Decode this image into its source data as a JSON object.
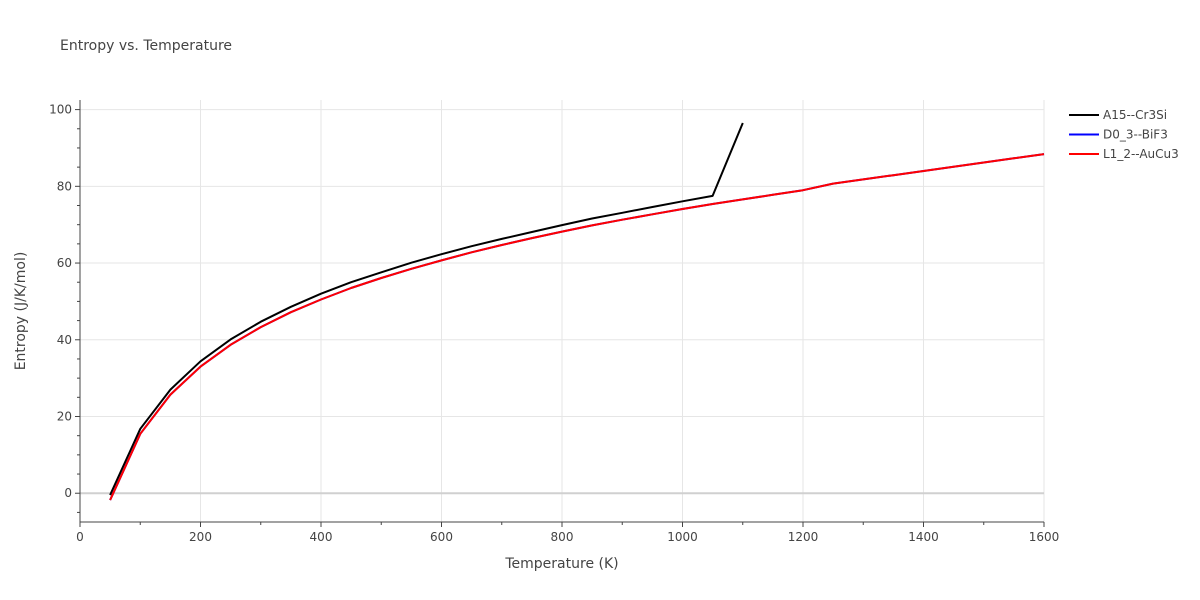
{
  "chart_data": {
    "type": "line",
    "title": "Entropy vs. Temperature",
    "xlabel": "Temperature (K)",
    "ylabel": "Entropy (J/K/mol)",
    "xlim": [
      0,
      1600
    ],
    "ylim": [
      -7.5,
      102.5
    ],
    "xticks": [
      0,
      200,
      400,
      600,
      800,
      1000,
      1200,
      1400,
      1600
    ],
    "yticks": [
      0,
      20,
      40,
      60,
      80,
      100
    ],
    "grid": true,
    "legend": "right",
    "series": [
      {
        "name": "A15--Cr3Si",
        "color": "#000000",
        "x": [
          50,
          100,
          150,
          200,
          250,
          300,
          350,
          400,
          450,
          500,
          550,
          600,
          650,
          700,
          750,
          800,
          850,
          900,
          950,
          1000,
          1050,
          1100
        ],
        "y": [
          -0.5,
          16.8,
          27.0,
          34.4,
          40.1,
          44.7,
          48.6,
          52.0,
          55.0,
          57.6,
          60.1,
          62.3,
          64.4,
          66.3,
          68.1,
          69.9,
          71.6,
          73.1,
          74.6,
          76.1,
          77.5,
          96.5
        ]
      },
      {
        "name": "D0_3--BiF3",
        "color": "#0000ff",
        "x": [
          50,
          100,
          150,
          200,
          250,
          300,
          350,
          400,
          450,
          500,
          550,
          600,
          650,
          700,
          750,
          800,
          850,
          900,
          950,
          1000,
          1050,
          1100,
          1150,
          1200,
          1250,
          1300,
          1350,
          1400,
          1450,
          1500,
          1550,
          1600
        ],
        "y": [
          -1.8,
          15.5,
          25.7,
          33.0,
          38.7,
          43.3,
          47.2,
          50.5,
          53.5,
          56.1,
          58.5,
          60.7,
          62.8,
          64.7,
          66.5,
          68.2,
          69.8,
          71.3,
          72.7,
          74.1,
          75.4,
          76.6,
          77.8,
          79.0,
          80.7,
          81.8,
          82.9,
          84.0,
          85.1,
          86.2,
          87.3,
          88.4
        ]
      },
      {
        "name": "L1_2--AuCu3",
        "color": "#ff0000",
        "x": [
          50,
          100,
          150,
          200,
          250,
          300,
          350,
          400,
          450,
          500,
          550,
          600,
          650,
          700,
          750,
          800,
          850,
          900,
          950,
          1000,
          1050,
          1100,
          1150,
          1200,
          1250,
          1300,
          1350,
          1400,
          1450,
          1500,
          1550,
          1600
        ],
        "y": [
          -1.8,
          15.5,
          25.7,
          33.0,
          38.7,
          43.3,
          47.2,
          50.5,
          53.5,
          56.1,
          58.5,
          60.7,
          62.8,
          64.7,
          66.5,
          68.2,
          69.8,
          71.3,
          72.7,
          74.1,
          75.4,
          76.6,
          77.8,
          79.0,
          80.7,
          81.8,
          82.9,
          84.0,
          85.1,
          86.2,
          87.3,
          88.4
        ]
      }
    ]
  }
}
